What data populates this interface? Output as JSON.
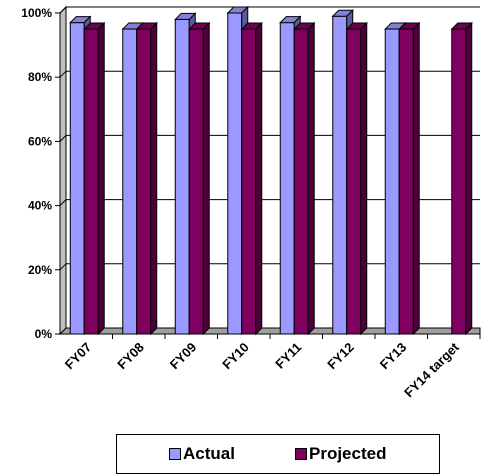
{
  "chart_data": {
    "type": "bar",
    "categories": [
      "FY07",
      "FY08",
      "FY09",
      "FY10",
      "FY11",
      "FY12",
      "FY13",
      "FY14 target"
    ],
    "series": [
      {
        "name": "Actual",
        "values": [
          97,
          95,
          98,
          100,
          97,
          99,
          95,
          null
        ],
        "color": "#9999ff"
      },
      {
        "name": "Projected",
        "values": [
          95,
          95,
          95,
          95,
          95,
          95,
          95,
          95
        ],
        "color": "#800060"
      }
    ],
    "ylim": [
      0,
      100
    ],
    "yticks": [
      "0%",
      "20%",
      "40%",
      "60%",
      "80%",
      "100%"
    ],
    "grid": true,
    "legend_position": "bottom",
    "title": "",
    "xlabel": "",
    "ylabel": ""
  }
}
